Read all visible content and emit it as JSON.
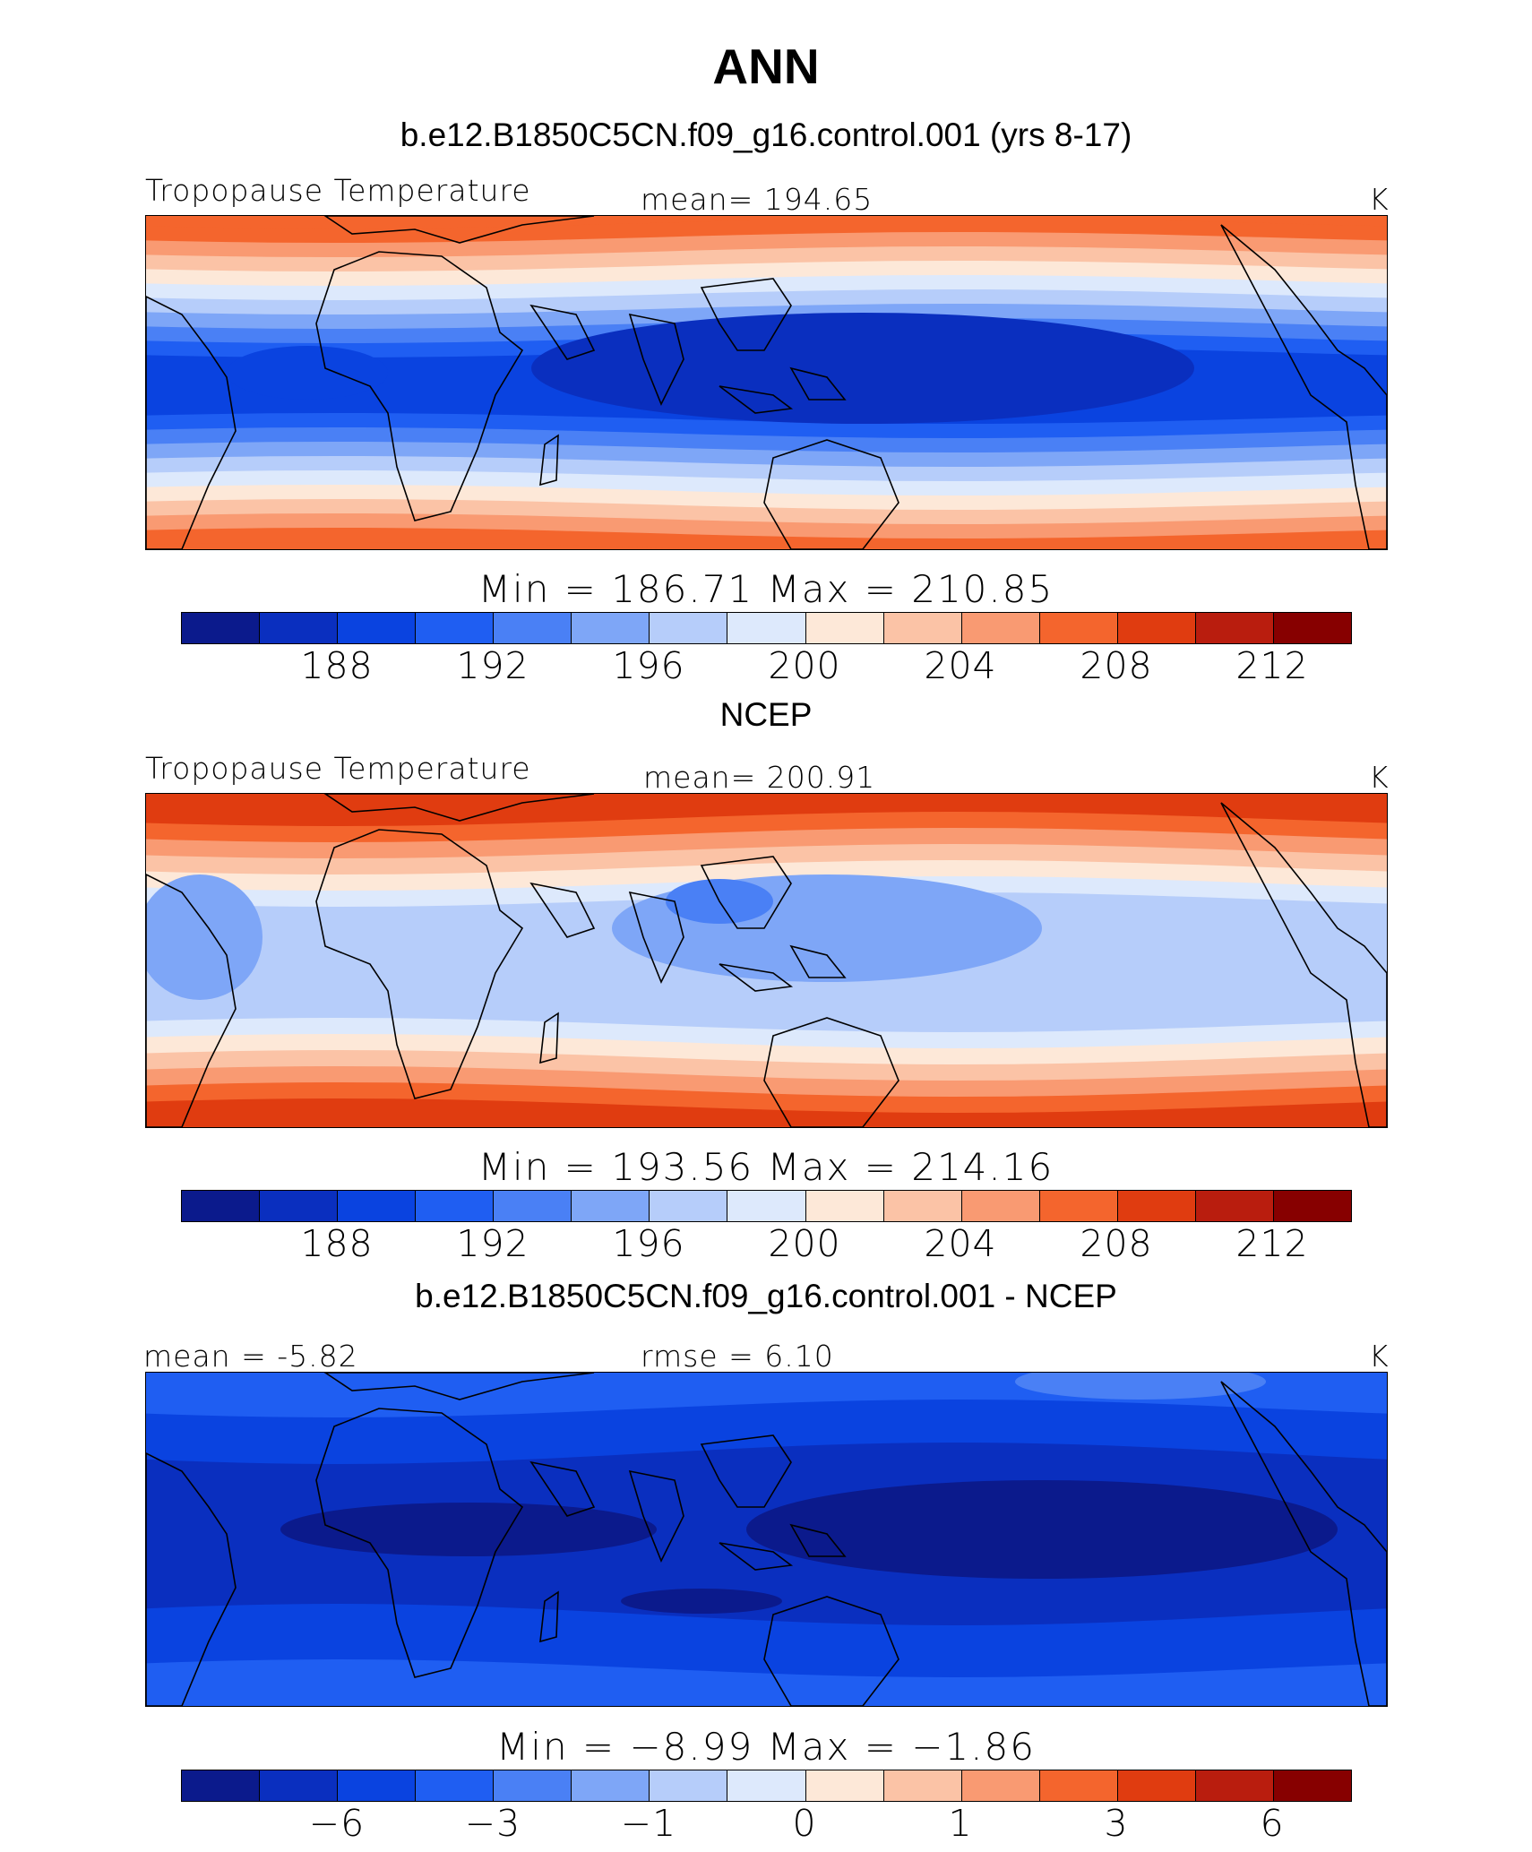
{
  "title": "ANN",
  "palette": [
    "#0b1a8c",
    "#0a2fbf",
    "#0a43e0",
    "#1f5ef2",
    "#4a80f5",
    "#7ea6f7",
    "#b6cdfa",
    "#dde9fc",
    "#fde8d8",
    "#fbc3a6",
    "#f99a72",
    "#f4652d",
    "#e03c10",
    "#b91d0e",
    "#870000"
  ],
  "panels": [
    {
      "subtitle": "b.e12.B1850C5CN.f09_g16.control.001 (yrs 8-17)",
      "left_label": "Tropopause  Temperature",
      "center_label": "mean=  194.65",
      "units": "K",
      "min_max": "Min  =  186.71  Max  =  210.85",
      "colorbar_ticks": [
        "188",
        "192",
        "196",
        "200",
        "204",
        "208",
        "212"
      ],
      "field_colors": [
        "#1c2fb0",
        "#0a2fbf",
        "#0a43e0",
        "#1f5ef2",
        "#4a80f5",
        "#7ea6f7",
        "#b6cdfa",
        "#dde9fc",
        "#fde8d8",
        "#fbc3a6",
        "#f99a72",
        "#f4652d",
        "#e03c10"
      ]
    },
    {
      "subtitle": "NCEP",
      "left_label": "Tropopause  Temperature",
      "center_label": "mean=  200.91",
      "units": "K",
      "min_max": "Min  =  193.56  Max  =  214.16",
      "colorbar_ticks": [
        "188",
        "192",
        "196",
        "200",
        "204",
        "208",
        "212"
      ],
      "field_colors": [
        "#4a80f5",
        "#7ea6f7",
        "#b6cdfa",
        "#dde9fc",
        "#fde8d8",
        "#fbc3a6",
        "#f99a72",
        "#f4652d",
        "#e03c10",
        "#c22a0c"
      ]
    },
    {
      "subtitle": "b.e12.B1850C5CN.f09_g16.control.001 - NCEP",
      "left_label": "mean  =   -5.82",
      "center_label": "rmse  =     6.10",
      "units": "K",
      "min_max": "Min  =   −8.99  Max  =   −1.86",
      "colorbar_ticks": [
        "−6",
        "−3",
        "−1",
        "0",
        "1",
        "3",
        "6"
      ],
      "field_colors": [
        "#0b1a8c",
        "#0a2fbf",
        "#0a43e0",
        "#1f5ef2",
        "#4a80f5"
      ]
    }
  ]
}
